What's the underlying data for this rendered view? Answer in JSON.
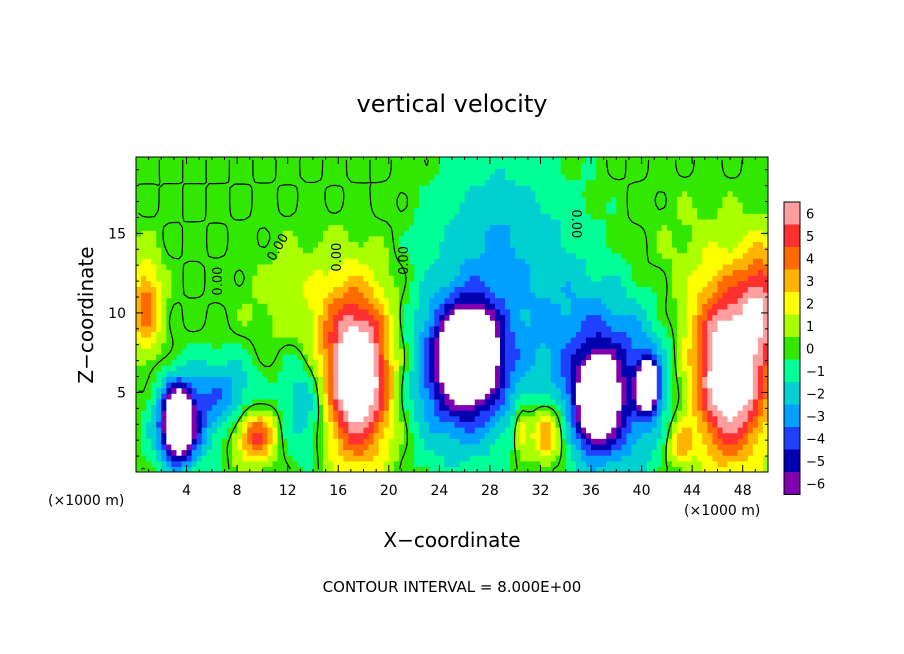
{
  "chart_data": {
    "type": "heatmap",
    "title": "vertical velocity",
    "xlabel": "X−coordinate",
    "ylabel": "Z−coordinate",
    "x_unit_left": "(×1000 m)",
    "x_unit_right": "(×1000 m)",
    "xlim": [
      0,
      50
    ],
    "ylim": [
      0,
      19.8
    ],
    "x_ticks": [
      4,
      8,
      12,
      16,
      20,
      24,
      28,
      32,
      36,
      40,
      44,
      48
    ],
    "x_tick_labels": [
      "4",
      "8",
      "12",
      "16",
      "20",
      "24",
      "28",
      "32",
      "36",
      "40",
      "44",
      "48"
    ],
    "y_ticks": [
      5,
      10,
      15
    ],
    "y_tick_labels": [
      "5",
      "10",
      "15"
    ],
    "colorbar": {
      "levels": [
        6,
        5,
        4,
        3,
        2,
        1,
        0,
        -1,
        -2,
        -3,
        -4,
        -5,
        -6
      ],
      "labels": [
        "6",
        "5",
        "4",
        "3",
        "2",
        "1",
        "0",
        "−1",
        "−2",
        "−3",
        "−4",
        "−5",
        "−6"
      ],
      "colors": [
        "#ff9e9e",
        "#ff3030",
        "#ff6a00",
        "#ffb400",
        "#ffff00",
        "#aaff00",
        "#33e800",
        "#00ff96",
        "#00d0d0",
        "#00a0ff",
        "#2040ff",
        "#0000b0",
        "#8000b0"
      ]
    },
    "regions": [
      {
        "x": 17.5,
        "z": 6.0,
        "rx": 2.8,
        "rz": 5.0,
        "value": 9
      },
      {
        "x": 47.0,
        "z": 6.5,
        "rx": 3.0,
        "rz": 5.5,
        "value": 9
      },
      {
        "x": 49.5,
        "z": 11.0,
        "rx": 1.5,
        "rz": 3.5,
        "value": 4
      },
      {
        "x": 0.8,
        "z": 10.5,
        "rx": 1.2,
        "rz": 3.0,
        "value": 4
      },
      {
        "x": 9.5,
        "z": 2.3,
        "rx": 1.6,
        "rz": 1.6,
        "value": 5
      },
      {
        "x": 32.5,
        "z": 2.5,
        "rx": 1.4,
        "rz": 2.0,
        "value": 4.5
      },
      {
        "x": 43.0,
        "z": 1.8,
        "rx": 1.0,
        "rz": 1.4,
        "value": 3
      },
      {
        "x": 30.5,
        "z": 2.5,
        "rx": 0.6,
        "rz": 1.5,
        "value": 3
      },
      {
        "x": 25.5,
        "z": 6.5,
        "rx": 4.0,
        "rz": 5.0,
        "value": -5.5
      },
      {
        "x": 26.5,
        "z": 7.5,
        "rx": 2.0,
        "rz": 2.6,
        "value": -9
      },
      {
        "x": 37.5,
        "z": 5.5,
        "rx": 4.5,
        "rz": 5.5,
        "value": -5
      },
      {
        "x": 36.5,
        "z": 4.5,
        "rx": 1.4,
        "rz": 2.4,
        "value": -9
      },
      {
        "x": 40.5,
        "z": 5.5,
        "rx": 0.8,
        "rz": 1.6,
        "value": -9
      },
      {
        "x": 3.5,
        "z": 3.0,
        "rx": 2.0,
        "rz": 2.8,
        "value": -6
      },
      {
        "x": 3.3,
        "z": 3.2,
        "rx": 0.9,
        "rz": 1.8,
        "value": -9
      },
      {
        "x": 7.0,
        "z": 5.0,
        "rx": 2.5,
        "rz": 2.5,
        "value": -3
      },
      {
        "x": 13.5,
        "z": 4.5,
        "rx": 2.0,
        "rz": 3.5,
        "value": -3
      },
      {
        "x": 31.0,
        "z": 11.5,
        "rx": 6.0,
        "rz": 7.0,
        "value": -1.8
      },
      {
        "x": 28.0,
        "z": 16.0,
        "rx": 5.0,
        "rz": 4.0,
        "value": -1.3
      },
      {
        "x": 14.0,
        "z": 10.5,
        "rx": 5.0,
        "rz": 4.0,
        "value": 1.2
      },
      {
        "x": 42.0,
        "z": 13.0,
        "rx": 5.0,
        "rz": 5.0,
        "value": 0.6
      }
    ],
    "zero_contour_labels": [
      {
        "x": 6.8,
        "z": 12.0,
        "text": "0.00",
        "angle": -90
      },
      {
        "x": 11.5,
        "z": 14.0,
        "text": "0.00",
        "angle": -60
      },
      {
        "x": 16.2,
        "z": 13.5,
        "text": "0.00",
        "angle": -90
      },
      {
        "x": 21.5,
        "z": 13.3,
        "text": "0.00",
        "angle": -90
      },
      {
        "x": 34.5,
        "z": 15.6,
        "text": "0.00",
        "angle": 90
      }
    ],
    "footnote": "CONTOUR INTERVAL = 8.000E+00"
  }
}
